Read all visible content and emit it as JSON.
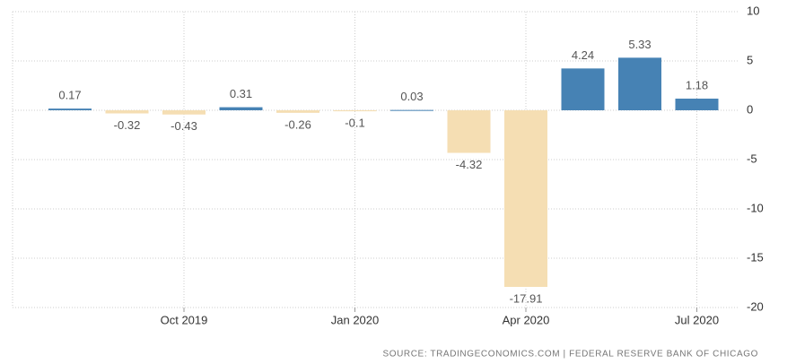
{
  "chart_data": {
    "type": "bar",
    "categories": [
      null,
      null,
      "Oct 2019",
      null,
      null,
      "Jan 2020",
      null,
      null,
      "Apr 2020",
      null,
      null,
      "Jul 2020"
    ],
    "values": [
      0.17,
      -0.32,
      -0.43,
      0.31,
      -0.26,
      -0.1,
      0.03,
      -4.32,
      -17.91,
      4.24,
      5.33,
      1.18
    ],
    "positive_color": "#4682b4",
    "negative_color": "#f5deb3",
    "ylim": [
      -20,
      10
    ],
    "yticks": [
      -20,
      -15,
      -10,
      -5,
      0,
      5,
      10
    ],
    "grid": true,
    "y_axis_side": "right",
    "source": "SOURCE: TRADINGECONOMICS.COM | FEDERAL RESERVE BANK OF CHICAGO"
  }
}
